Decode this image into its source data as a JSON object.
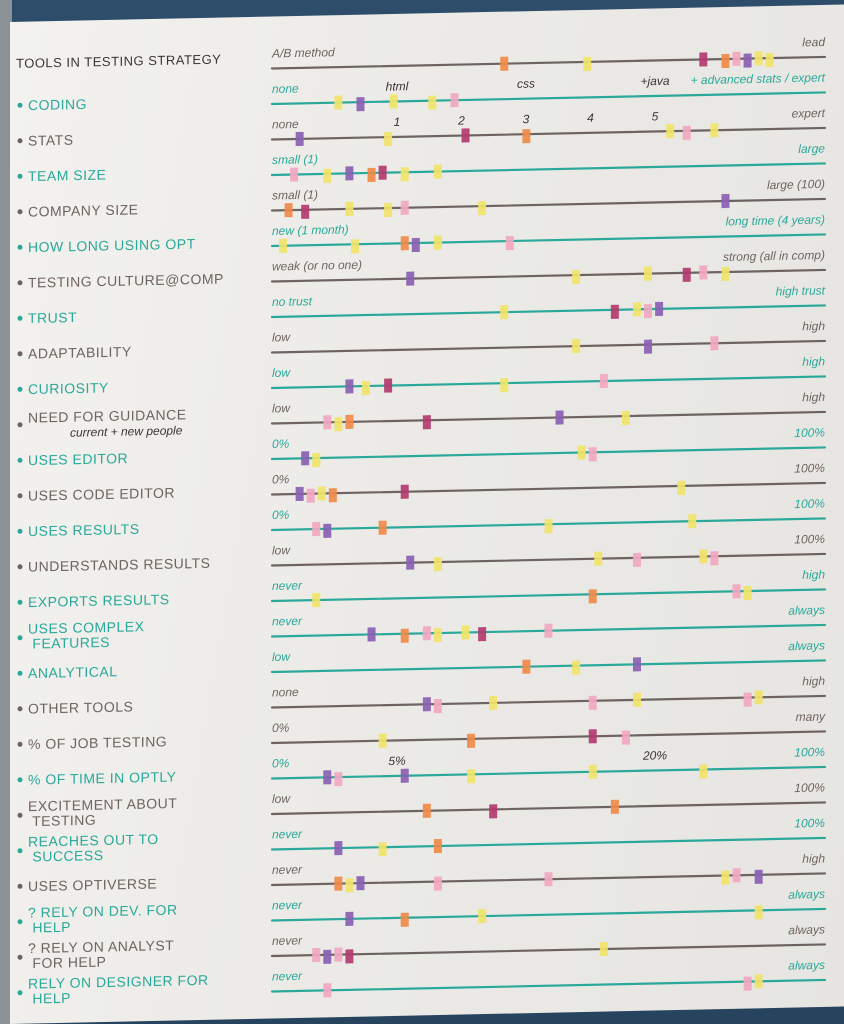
{
  "board": {
    "title": "TOOLS IN TESTING STRATEGY",
    "colors": {
      "teal": "#2aa89a",
      "brown": "#6f6361",
      "ink": "#3a3432",
      "purple": "#8a5fb3",
      "pink": "#f1a7c1",
      "yellow": "#f0e36a",
      "orange": "#ef8a4a",
      "magenta": "#b23a6e"
    },
    "rows": [
      {
        "label": "",
        "left": "A/B method",
        "right": "lead",
        "color": "brown",
        "stickies": [
          [
            42,
            "orange"
          ],
          [
            57,
            "yellow"
          ],
          [
            78,
            "magenta"
          ],
          [
            82,
            "orange"
          ],
          [
            84,
            "pink"
          ],
          [
            86,
            "purple"
          ],
          [
            88,
            "yellow"
          ],
          [
            90,
            "yellow"
          ]
        ]
      },
      {
        "label": "CODING",
        "left": "none",
        "right": "+ advanced stats / expert",
        "ticks": [
          "html",
          "css",
          "+java"
        ],
        "color": "teal",
        "stickies": [
          [
            12,
            "yellow"
          ],
          [
            16,
            "purple"
          ],
          [
            22,
            "yellow"
          ],
          [
            29,
            "yellow"
          ],
          [
            33,
            "pink"
          ]
        ]
      },
      {
        "label": "STATS",
        "left": "none",
        "right": "expert",
        "ticks": [
          "1",
          "2",
          "3",
          "4",
          "5"
        ],
        "color": "brown",
        "stickies": [
          [
            5,
            "purple"
          ],
          [
            21,
            "yellow"
          ],
          [
            35,
            "magenta"
          ],
          [
            46,
            "orange"
          ],
          [
            72,
            "yellow"
          ],
          [
            75,
            "pink"
          ],
          [
            80,
            "yellow"
          ]
        ]
      },
      {
        "label": "TEAM SIZE",
        "left": "small (1)",
        "right": "large",
        "color": "teal",
        "stickies": [
          [
            4,
            "pink"
          ],
          [
            10,
            "yellow"
          ],
          [
            14,
            "purple"
          ],
          [
            18,
            "orange"
          ],
          [
            20,
            "magenta"
          ],
          [
            24,
            "yellow"
          ],
          [
            30,
            "yellow"
          ]
        ]
      },
      {
        "label": "COMPANY SIZE",
        "left": "small (1)",
        "right": "large (100)",
        "color": "brown",
        "stickies": [
          [
            3,
            "orange"
          ],
          [
            6,
            "magenta"
          ],
          [
            14,
            "yellow"
          ],
          [
            21,
            "yellow"
          ],
          [
            24,
            "pink"
          ],
          [
            38,
            "yellow"
          ],
          [
            82,
            "purple"
          ]
        ]
      },
      {
        "label": "HOW LONG USING OPT",
        "left": "new (1 month)",
        "right": "long time (4 years)",
        "color": "teal",
        "stickies": [
          [
            2,
            "yellow"
          ],
          [
            15,
            "yellow"
          ],
          [
            24,
            "orange"
          ],
          [
            26,
            "purple"
          ],
          [
            30,
            "yellow"
          ],
          [
            43,
            "pink"
          ]
        ]
      },
      {
        "label": "TESTING CULTURE@COMP",
        "left": "weak (or no one)",
        "right": "strong (all in comp)",
        "color": "brown",
        "stickies": [
          [
            25,
            "purple"
          ],
          [
            55,
            "yellow"
          ],
          [
            68,
            "yellow"
          ],
          [
            75,
            "magenta"
          ],
          [
            78,
            "pink"
          ],
          [
            82,
            "yellow"
          ]
        ]
      },
      {
        "label": "TRUST",
        "left": "no trust",
        "right": "high trust",
        "color": "teal",
        "stickies": [
          [
            42,
            "yellow"
          ],
          [
            62,
            "magenta"
          ],
          [
            66,
            "yellow"
          ],
          [
            68,
            "pink"
          ],
          [
            70,
            "purple"
          ]
        ]
      },
      {
        "label": "ADAPTABILITY",
        "left": "low",
        "right": "high",
        "color": "brown",
        "stickies": [
          [
            55,
            "yellow"
          ],
          [
            68,
            "purple"
          ],
          [
            80,
            "pink"
          ]
        ]
      },
      {
        "label": "CURIOSITY",
        "left": "low",
        "right": "high",
        "color": "teal",
        "stickies": [
          [
            14,
            "purple"
          ],
          [
            17,
            "yellow"
          ],
          [
            21,
            "magenta"
          ],
          [
            42,
            "yellow"
          ],
          [
            60,
            "pink"
          ]
        ]
      },
      {
        "label": "NEED FOR GUIDANCE",
        "sub": "current + new people",
        "left": "low",
        "right": "high",
        "color": "brown",
        "stickies": [
          [
            10,
            "pink"
          ],
          [
            12,
            "yellow"
          ],
          [
            14,
            "orange"
          ],
          [
            28,
            "magenta"
          ],
          [
            52,
            "purple"
          ],
          [
            64,
            "yellow"
          ]
        ]
      },
      {
        "label": "USES EDITOR",
        "left": "0%",
        "right": "100%",
        "color": "teal",
        "stickies": [
          [
            6,
            "purple"
          ],
          [
            8,
            "yellow"
          ],
          [
            56,
            "yellow"
          ],
          [
            58,
            "pink"
          ]
        ]
      },
      {
        "label": "USES CODE EDITOR",
        "left": "0%",
        "right": "100%",
        "color": "brown",
        "stickies": [
          [
            5,
            "purple"
          ],
          [
            7,
            "pink"
          ],
          [
            9,
            "yellow"
          ],
          [
            11,
            "orange"
          ],
          [
            24,
            "magenta"
          ],
          [
            74,
            "yellow"
          ]
        ]
      },
      {
        "label": "USES RESULTS",
        "left": "0%",
        "right": "100%",
        "color": "teal",
        "stickies": [
          [
            8,
            "pink"
          ],
          [
            10,
            "purple"
          ],
          [
            20,
            "orange"
          ],
          [
            50,
            "yellow"
          ],
          [
            76,
            "yellow"
          ]
        ]
      },
      {
        "label": "UNDERSTANDS RESULTS",
        "left": "low",
        "right": "100%",
        "color": "brown",
        "stickies": [
          [
            25,
            "purple"
          ],
          [
            30,
            "yellow"
          ],
          [
            59,
            "yellow"
          ],
          [
            66,
            "pink"
          ],
          [
            78,
            "yellow"
          ],
          [
            80,
            "pink"
          ]
        ]
      },
      {
        "label": "EXPORTS RESULTS",
        "left": "never",
        "right": "high",
        "color": "teal",
        "stickies": [
          [
            8,
            "yellow"
          ],
          [
            58,
            "orange"
          ],
          [
            84,
            "pink"
          ],
          [
            86,
            "yellow"
          ]
        ]
      },
      {
        "label": "USES COMPLEX FEATURES",
        "left": "never",
        "right": "always",
        "color": "teal",
        "stickies": [
          [
            18,
            "purple"
          ],
          [
            24,
            "orange"
          ],
          [
            28,
            "pink"
          ],
          [
            30,
            "yellow"
          ],
          [
            35,
            "yellow"
          ],
          [
            38,
            "magenta"
          ],
          [
            50,
            "pink"
          ]
        ]
      },
      {
        "label": "ANALYTICAL",
        "left": "low",
        "right": "always",
        "color": "teal",
        "stickies": [
          [
            46,
            "orange"
          ],
          [
            55,
            "yellow"
          ],
          [
            66,
            "purple"
          ]
        ]
      },
      {
        "label": "OTHER TOOLS",
        "left": "none",
        "right": "high",
        "color": "brown",
        "stickies": [
          [
            28,
            "purple"
          ],
          [
            30,
            "pink"
          ],
          [
            40,
            "yellow"
          ],
          [
            58,
            "pink"
          ],
          [
            66,
            "yellow"
          ],
          [
            86,
            "pink"
          ],
          [
            88,
            "yellow"
          ]
        ]
      },
      {
        "label": "% OF JOB TESTING",
        "left": "0%",
        "right": "many",
        "color": "brown",
        "stickies": [
          [
            20,
            "yellow"
          ],
          [
            36,
            "orange"
          ],
          [
            58,
            "magenta"
          ],
          [
            64,
            "pink"
          ]
        ]
      },
      {
        "label": "% OF TIME IN OPTLY",
        "left": "0%",
        "right": "100%",
        "color": "teal",
        "ticks": [
          "5%",
          "20%"
        ],
        "stickies": [
          [
            10,
            "purple"
          ],
          [
            12,
            "pink"
          ],
          [
            24,
            "purple"
          ],
          [
            36,
            "yellow"
          ],
          [
            58,
            "yellow"
          ],
          [
            78,
            "yellow"
          ]
        ]
      },
      {
        "label": "EXCITEMENT ABOUT TESTING",
        "left": "low",
        "right": "100%",
        "color": "brown",
        "stickies": [
          [
            28,
            "orange"
          ],
          [
            40,
            "magenta"
          ],
          [
            62,
            "orange"
          ]
        ]
      },
      {
        "label": "REACHES OUT TO SUCCESS",
        "left": "never",
        "right": "100%",
        "color": "teal",
        "stickies": [
          [
            12,
            "purple"
          ],
          [
            20,
            "yellow"
          ],
          [
            30,
            "orange"
          ]
        ]
      },
      {
        "label": "USES OPTIVERSE",
        "left": "never",
        "right": "high",
        "color": "brown",
        "stickies": [
          [
            12,
            "orange"
          ],
          [
            14,
            "yellow"
          ],
          [
            16,
            "purple"
          ],
          [
            30,
            "pink"
          ],
          [
            50,
            "pink"
          ],
          [
            82,
            "yellow"
          ],
          [
            84,
            "pink"
          ],
          [
            88,
            "purple"
          ]
        ]
      },
      {
        "label": "? RELY ON DEV. FOR HELP",
        "left": "never",
        "right": "always",
        "color": "teal",
        "stickies": [
          [
            14,
            "purple"
          ],
          [
            24,
            "orange"
          ],
          [
            38,
            "yellow"
          ],
          [
            88,
            "yellow"
          ]
        ]
      },
      {
        "label": "? RELY ON ANALYST FOR HELP",
        "left": "never",
        "right": "always",
        "color": "brown",
        "stickies": [
          [
            8,
            "pink"
          ],
          [
            10,
            "purple"
          ],
          [
            12,
            "pink"
          ],
          [
            14,
            "magenta"
          ],
          [
            60,
            "yellow"
          ]
        ]
      },
      {
        "label": "rely on DESIGNER FOR HELP",
        "left": "never",
        "right": "always",
        "color": "teal",
        "stickies": [
          [
            10,
            "pink"
          ],
          [
            86,
            "pink"
          ],
          [
            88,
            "yellow"
          ]
        ]
      }
    ]
  }
}
